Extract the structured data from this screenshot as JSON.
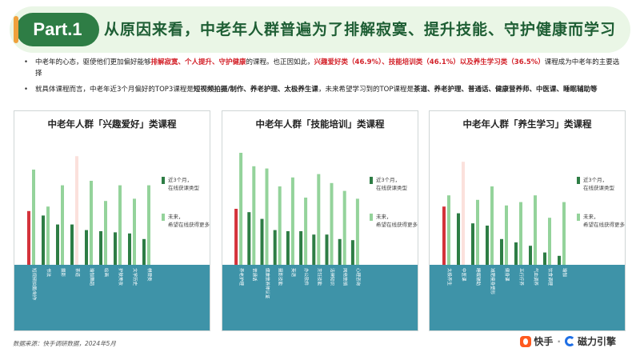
{
  "header": {
    "badge": "Part.1",
    "title": "从原因来看，中老年人群普遍为了排解寂寞、提升技能、守护健康而学习"
  },
  "bullets": {
    "b1": {
      "t1": "中老年的心态，驱使他们更加偏好能够",
      "h1": "排解寂寞、个人提升、守护健康",
      "t2": "的课程。也正因如此，",
      "h2": "兴趣爱好类（46.9%）、技能培训类（46.1%）以及养生学习类（36.5%）",
      "t3": "课程成为中老年的主要选择"
    },
    "b2": {
      "t1": "就具体课程而言，中老年近3个月偏好的TOP3课程是",
      "h1": "短视频拍摄/制作、养老护理、太极养生课",
      "t2": "，未来希望学习到的TOP课程是",
      "h2": "茶道、养老护理、普通话、健康营养师、中医课、睡眠辅助等"
    }
  },
  "colors": {
    "recent": "#2e7d45",
    "future": "#94d39b",
    "top_recent": "#d4333b",
    "top_future": "#fbe1dc",
    "base": "#3e93a8"
  },
  "chart_data": [
    {
      "type": "bar",
      "title": "中老年人群「兴趣爱好」类课程",
      "categories": [
        "短视频拍摄/制作",
        "书法",
        "摄影",
        "茶道",
        "瑜伽舞蹈",
        "绘画",
        "护肤美妆",
        "文学历史",
        "棋牌类"
      ],
      "series": [
        {
          "name": "近3个月，在线获课类型",
          "values": [
            0.48,
            0.44,
            0.36,
            0.36,
            0.31,
            0.3,
            0.29,
            0.28,
            0.23
          ]
        },
        {
          "name": "未来，希望在线获得更多类型",
          "values": [
            0.85,
            0.52,
            0.71,
            0.97,
            0.75,
            0.57,
            0.71,
            0.59,
            0.71
          ]
        }
      ],
      "highlight_index": [
        0,
        3
      ],
      "ylim": [
        0,
        1
      ]
    },
    {
      "type": "bar",
      "title": "中老年人群「技能培训」类课程",
      "categories": [
        "养老护理",
        "普通话",
        "健康营养师认证",
        "摄影技能",
        "英语",
        "办公软件",
        "烹饪技能",
        "法律知识",
        "网络营销",
        "心理咨询"
      ],
      "series": [
        {
          "name": "近3个月，在线获课类型",
          "values": [
            0.5,
            0.47,
            0.41,
            0.31,
            0.3,
            0.3,
            0.27,
            0.27,
            0.23,
            0.22
          ]
        },
        {
          "name": "未来，希望在线获得更多类型",
          "values": [
            1.0,
            0.88,
            0.86,
            0.7,
            0.78,
            0.6,
            0.81,
            0.73,
            0.66,
            0.59
          ]
        }
      ],
      "highlight_index": [
        0
      ],
      "ylim": [
        0,
        1
      ]
    },
    {
      "type": "bar",
      "title": "中老年人群「养生学习」类课程",
      "categories": [
        "太极养生",
        "中医课",
        "睡眠辅助",
        "减肥瘦身塑形",
        "健身课",
        "五行疗养",
        "气血调养",
        "饮食调理",
        "瑜伽"
      ],
      "series": [
        {
          "name": "近3个月，在线获课类型",
          "values": [
            0.52,
            0.46,
            0.37,
            0.35,
            0.23,
            0.2,
            0.17,
            0.11,
            0.08
          ]
        },
        {
          "name": "未来，希望在线获得更多类型",
          "values": [
            0.62,
            0.92,
            0.58,
            0.7,
            0.53,
            0.56,
            0.62,
            0.42,
            0.56
          ]
        }
      ],
      "highlight_index": [
        0,
        1
      ],
      "ylim": [
        0,
        1
      ]
    }
  ],
  "footer": {
    "source": "数据来源：快手调研数据，2024年5月",
    "logo1": "快手",
    "logo_sep": "·",
    "logo2": "磁力引擎"
  }
}
